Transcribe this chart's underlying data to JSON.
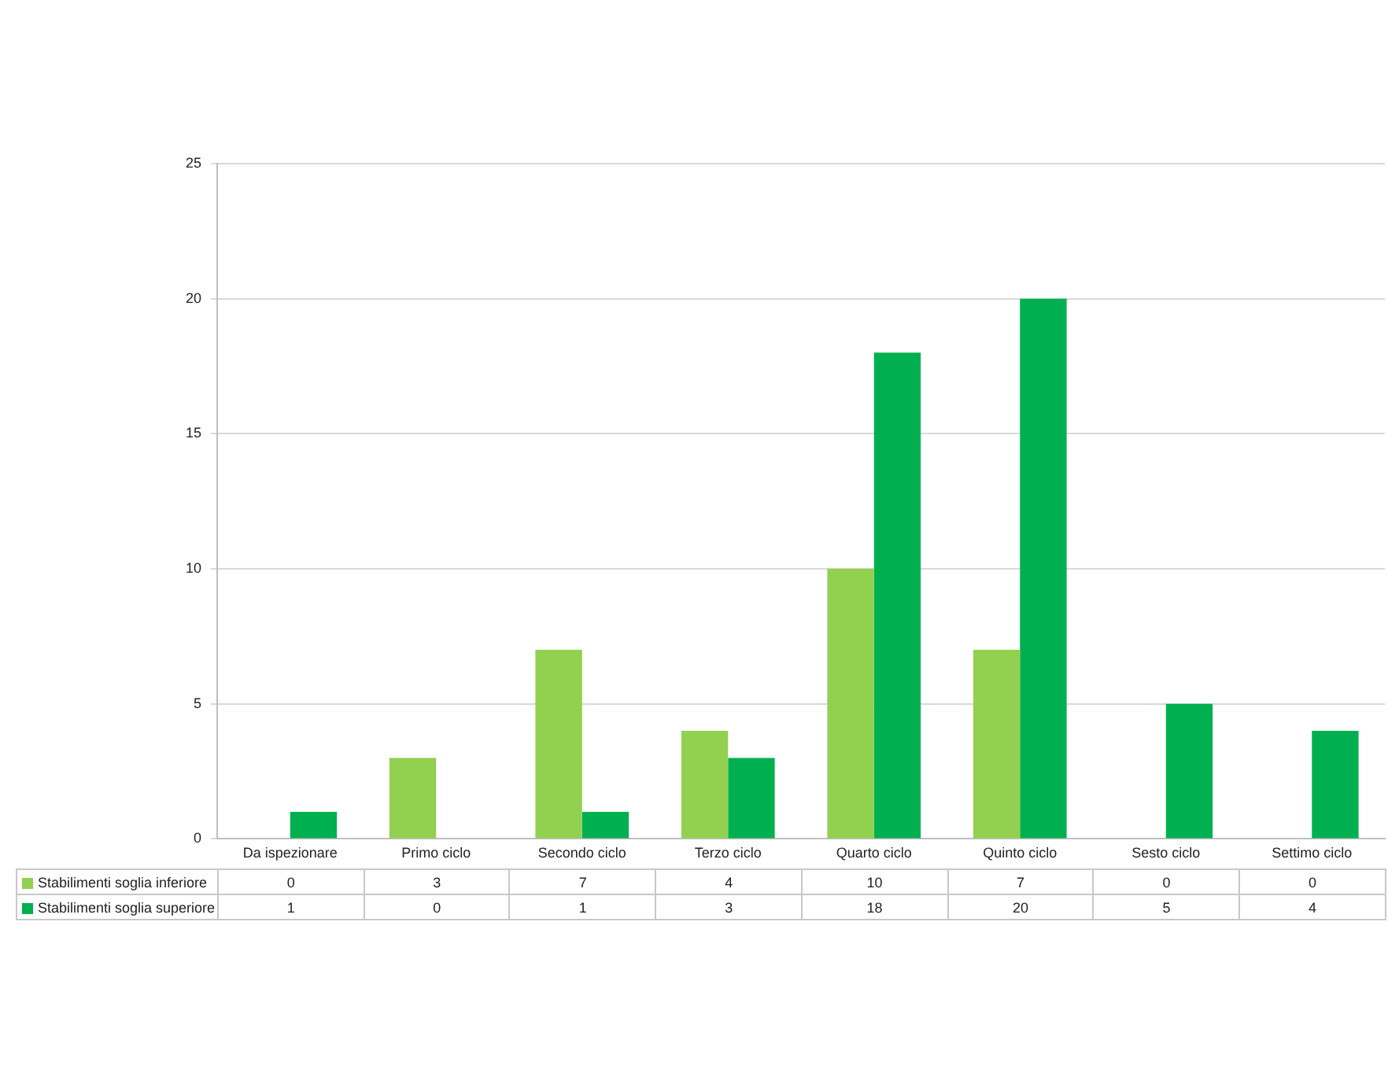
{
  "chart_data": {
    "type": "bar",
    "categories": [
      "Da ispezionare",
      "Primo ciclo",
      "Secondo ciclo",
      "Terzo ciclo",
      "Quarto ciclo",
      "Quinto ciclo",
      "Sesto ciclo",
      "Settimo ciclo"
    ],
    "series": [
      {
        "name": "Stabilimenti soglia inferiore",
        "color": "#92d050",
        "values": [
          0,
          3,
          7,
          4,
          10,
          7,
          0,
          0
        ]
      },
      {
        "name": "Stabilimenti soglia superiore",
        "color": "#00b050",
        "values": [
          1,
          0,
          1,
          3,
          18,
          20,
          5,
          4
        ]
      }
    ],
    "ylim": [
      0,
      25
    ],
    "yticks": [
      0,
      5,
      10,
      15,
      20,
      25
    ],
    "grid": "y",
    "legend": "bottom",
    "data_labels": true
  }
}
